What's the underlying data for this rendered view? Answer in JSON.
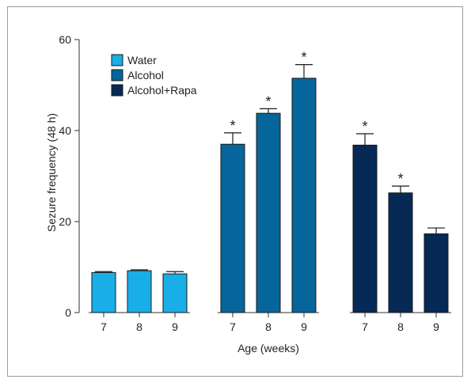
{
  "chart_data": {
    "type": "bar",
    "title": "",
    "xlabel": "Age (weeks)",
    "ylabel": "Sezure frequency (48 h)",
    "ylim": [
      0,
      60
    ],
    "yticks": [
      0,
      20,
      40,
      60
    ],
    "grid": false,
    "legend_position": "top-left",
    "significance_marker": "*",
    "groups": [
      {
        "name": "Water",
        "color": "#19aee8",
        "categories": [
          "7",
          "8",
          "9"
        ],
        "values": [
          8.8,
          9.2,
          8.5
        ],
        "errors": [
          0.2,
          0.2,
          0.5
        ],
        "significant": [
          false,
          false,
          false
        ]
      },
      {
        "name": "Alcohol",
        "color": "#06659b",
        "categories": [
          "7",
          "8",
          "9"
        ],
        "values": [
          37.0,
          43.8,
          51.5
        ],
        "errors": [
          2.5,
          1.0,
          3.0
        ],
        "significant": [
          true,
          true,
          true
        ]
      },
      {
        "name": "Alcohol+Rapa",
        "color": "#062a55",
        "categories": [
          "7",
          "8",
          "9"
        ],
        "values": [
          36.8,
          26.3,
          17.3
        ],
        "errors": [
          2.5,
          1.5,
          1.3
        ],
        "significant": [
          true,
          true,
          false
        ]
      }
    ]
  }
}
